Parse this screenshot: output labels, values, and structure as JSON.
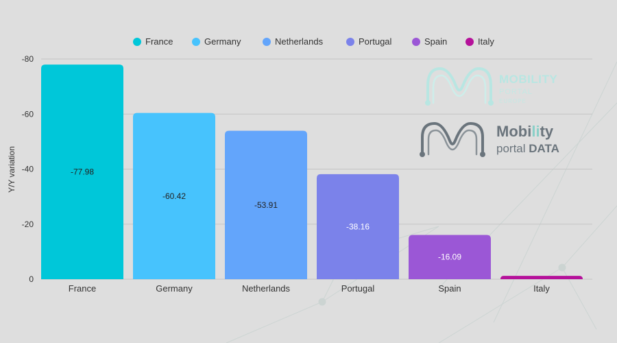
{
  "chart_data": {
    "type": "bar",
    "categories": [
      "France",
      "Germany",
      "Netherlands",
      "Portugal",
      "Spain",
      "Italy"
    ],
    "values": [
      -77.98,
      -60.42,
      -53.91,
      -38.16,
      -16.09,
      -1.2
    ],
    "value_labels": [
      "-77.98",
      "-60.42",
      "-53.91",
      "-38.16",
      "-16.09",
      ""
    ],
    "colors": [
      "#00c7d9",
      "#47c3fd",
      "#63a5fb",
      "#7b82ea",
      "#9b57d6",
      "#b5119a"
    ],
    "label_colors": [
      "#222222",
      "#222222",
      "#222222",
      "#ffffff",
      "#ffffff",
      "#ffffff"
    ],
    "legend": [
      "France",
      "Germany",
      "Netherlands",
      "Portugal",
      "Spain",
      "Italy"
    ],
    "legend_placement": "top-center",
    "ylabel": "Y/Y variation",
    "xlabel": "",
    "ylim": [
      0,
      -80
    ],
    "y_ticks": [
      0,
      -20,
      -40,
      -60,
      -80
    ],
    "y_tick_labels": [
      "0",
      "-20",
      "-40",
      "-60",
      "-80"
    ],
    "grid": true
  },
  "logos": {
    "mobility_portal_europe": {
      "line1": "MOBILITY",
      "line2": "PORTAL",
      "line3": "EUROPE"
    },
    "mobility_portal_data": {
      "line1a": "Mobi",
      "line1b": "li",
      "line1c": "ty",
      "line2a": "portal ",
      "line2b": "DATA"
    }
  }
}
